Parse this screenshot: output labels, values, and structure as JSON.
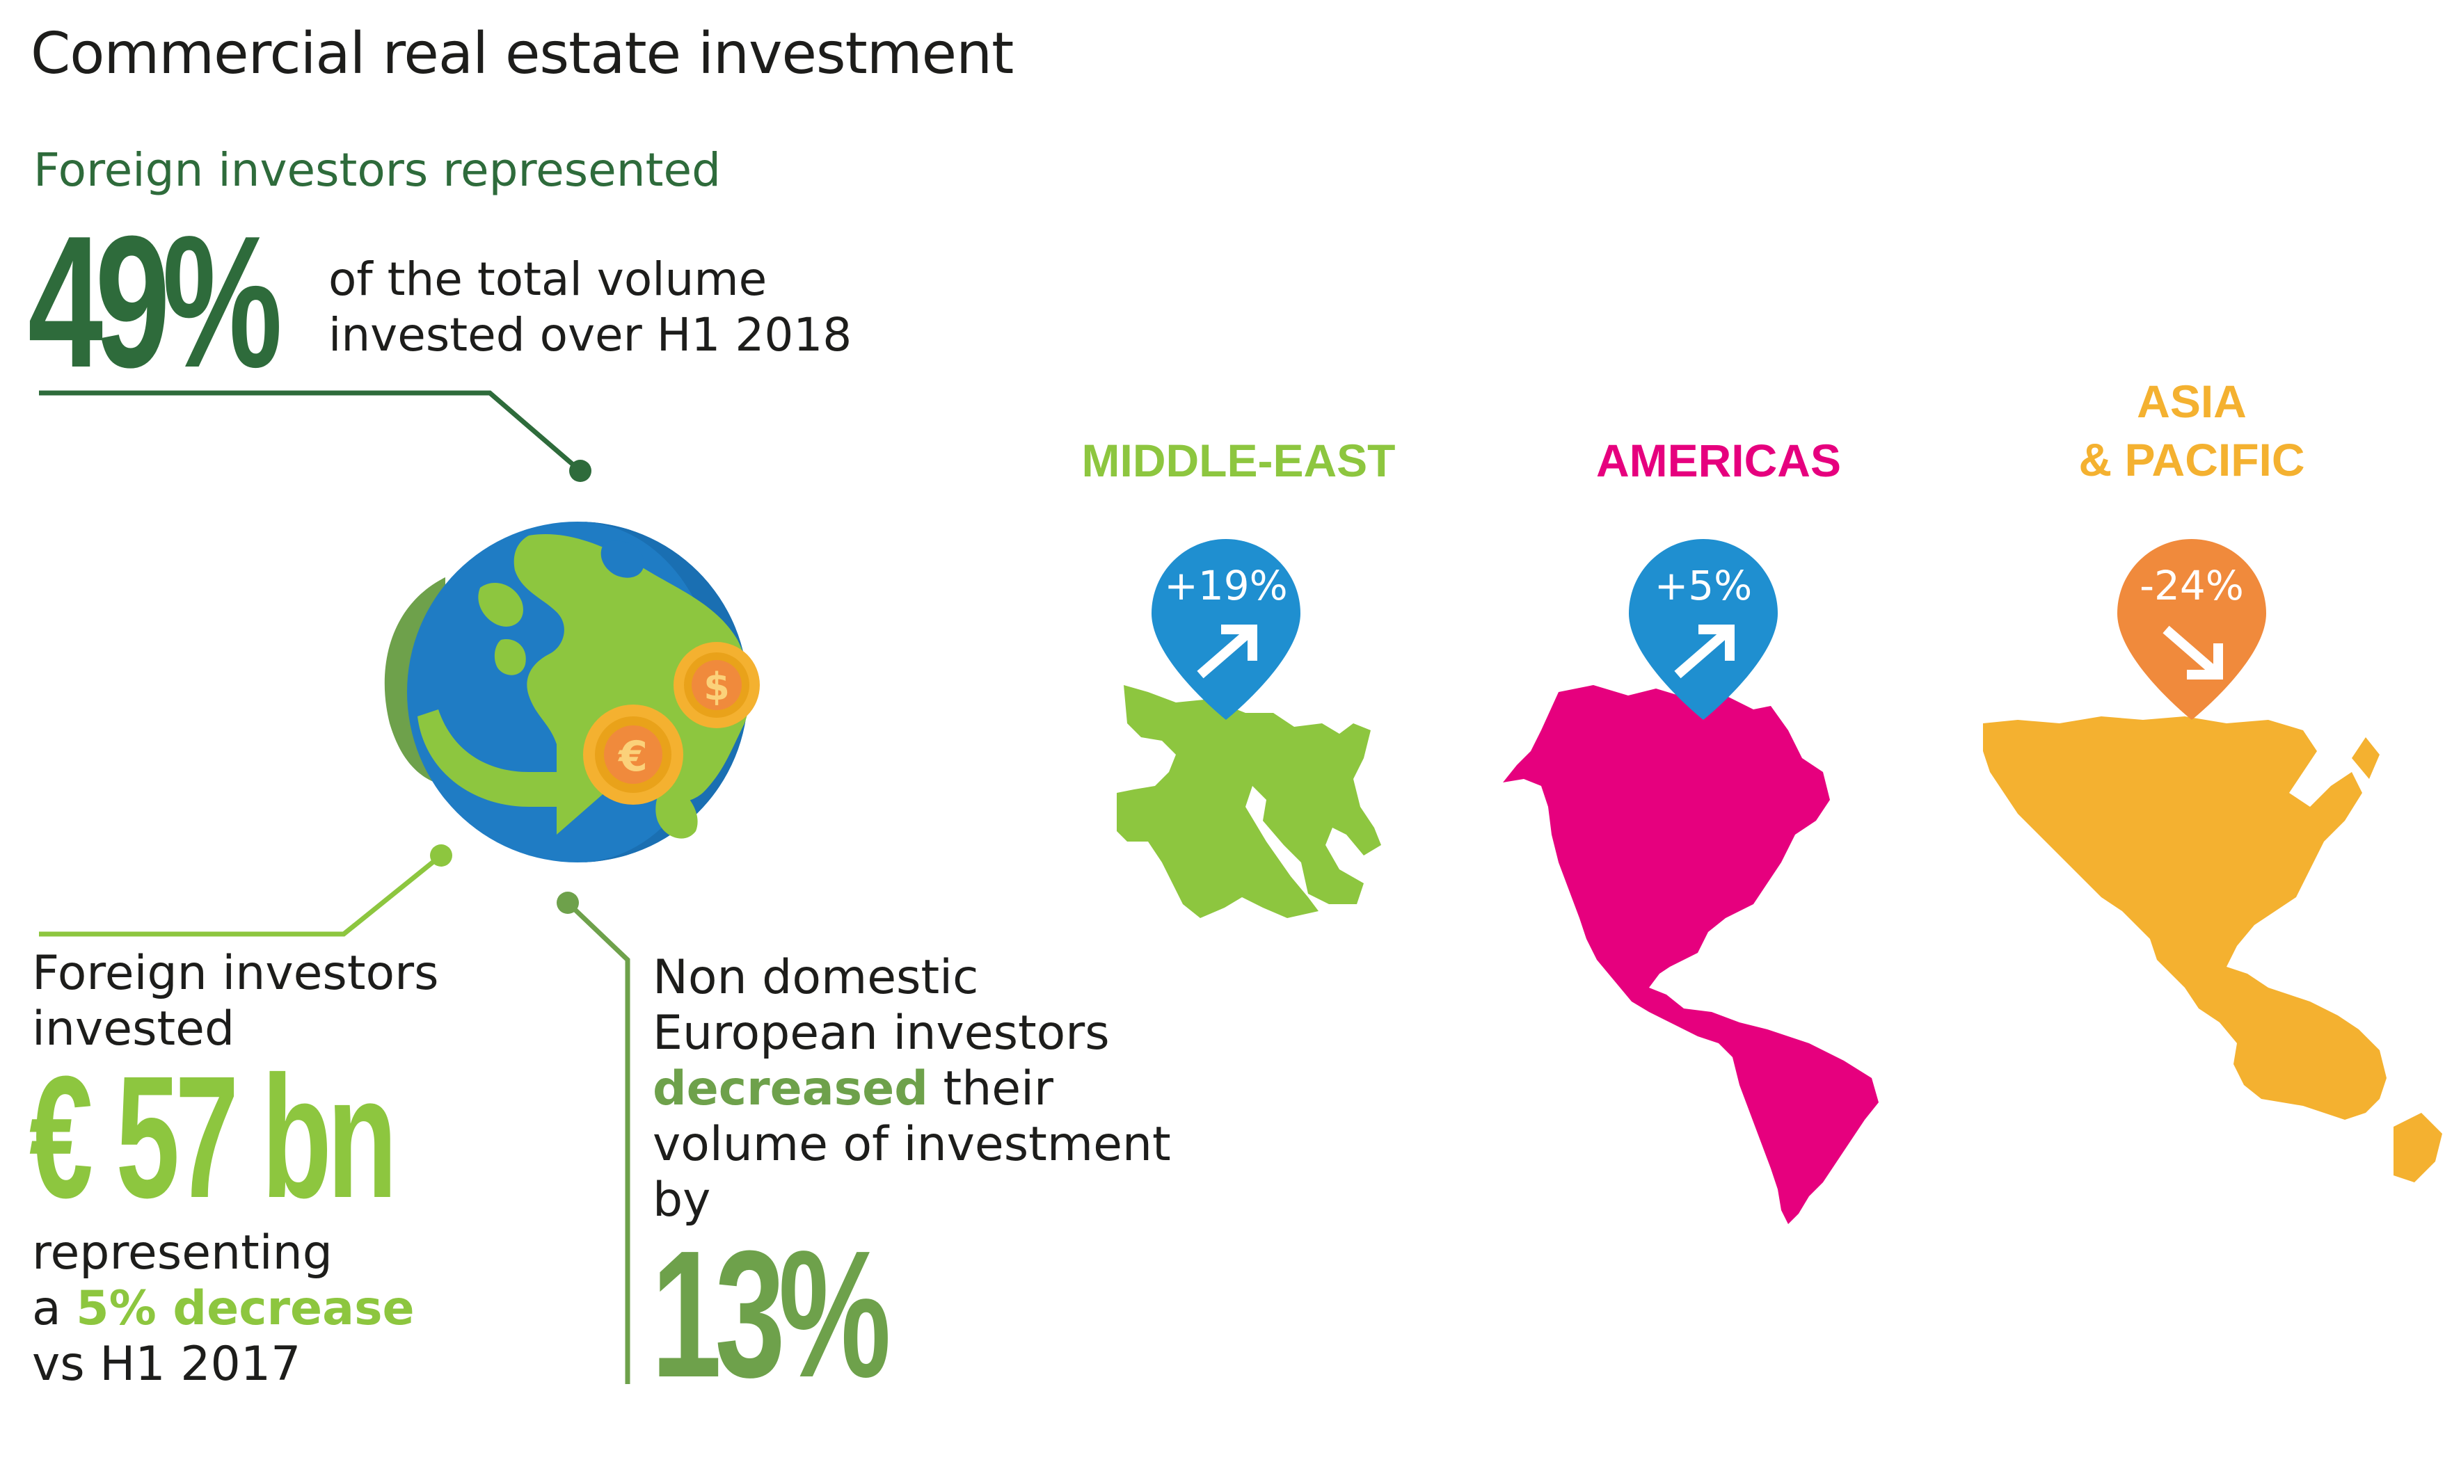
{
  "title": "Commercial real estate investment",
  "foreign_share": {
    "heading": "Foreign investors represented",
    "value": "49%",
    "desc_line1": "of the total volume",
    "desc_line2": "invested over H1 2018"
  },
  "foreign_invested": {
    "line1": "Foreign investors",
    "line2": "invested",
    "value": "€ 57 bn",
    "rep_line1": "representing",
    "rep_prefix": "a ",
    "rep_highlight": "5% decrease",
    "rep_line3": "vs H1 2017"
  },
  "non_domestic": {
    "line1": "Non domestic",
    "line2": "European investors",
    "highlight": "decreased",
    "line3_rest": " their",
    "line4": "volume of investment",
    "line5": "by",
    "value": "13%"
  },
  "regions": [
    {
      "name": "MIDDLE-EAST",
      "change": "+19%",
      "direction": "up",
      "color": "#8dc63f",
      "pin_color": "#1f8fd0"
    },
    {
      "name": "AMERICAS",
      "change": "+5%",
      "direction": "up",
      "color": "#e6007e",
      "pin_color": "#1f8fd0"
    },
    {
      "name_line1": "ASIA",
      "name_line2": "& PACIFIC",
      "change": "-24%",
      "direction": "down",
      "color": "#f4b130",
      "pin_color": "#f08a3c"
    }
  ],
  "colors": {
    "dark_green": "#2e6b3b",
    "light_green": "#8dc63f",
    "mid_green": "#6ea14b",
    "blue": "#1f8fd0",
    "orange": "#f08a3c",
    "magenta": "#e6007e",
    "amber": "#f4b130"
  },
  "icons": [
    "globe-icon",
    "euro-coin-icon",
    "dollar-coin-icon",
    "arrow-up-right-icon",
    "arrow-down-right-icon",
    "map-pin-icon"
  ]
}
